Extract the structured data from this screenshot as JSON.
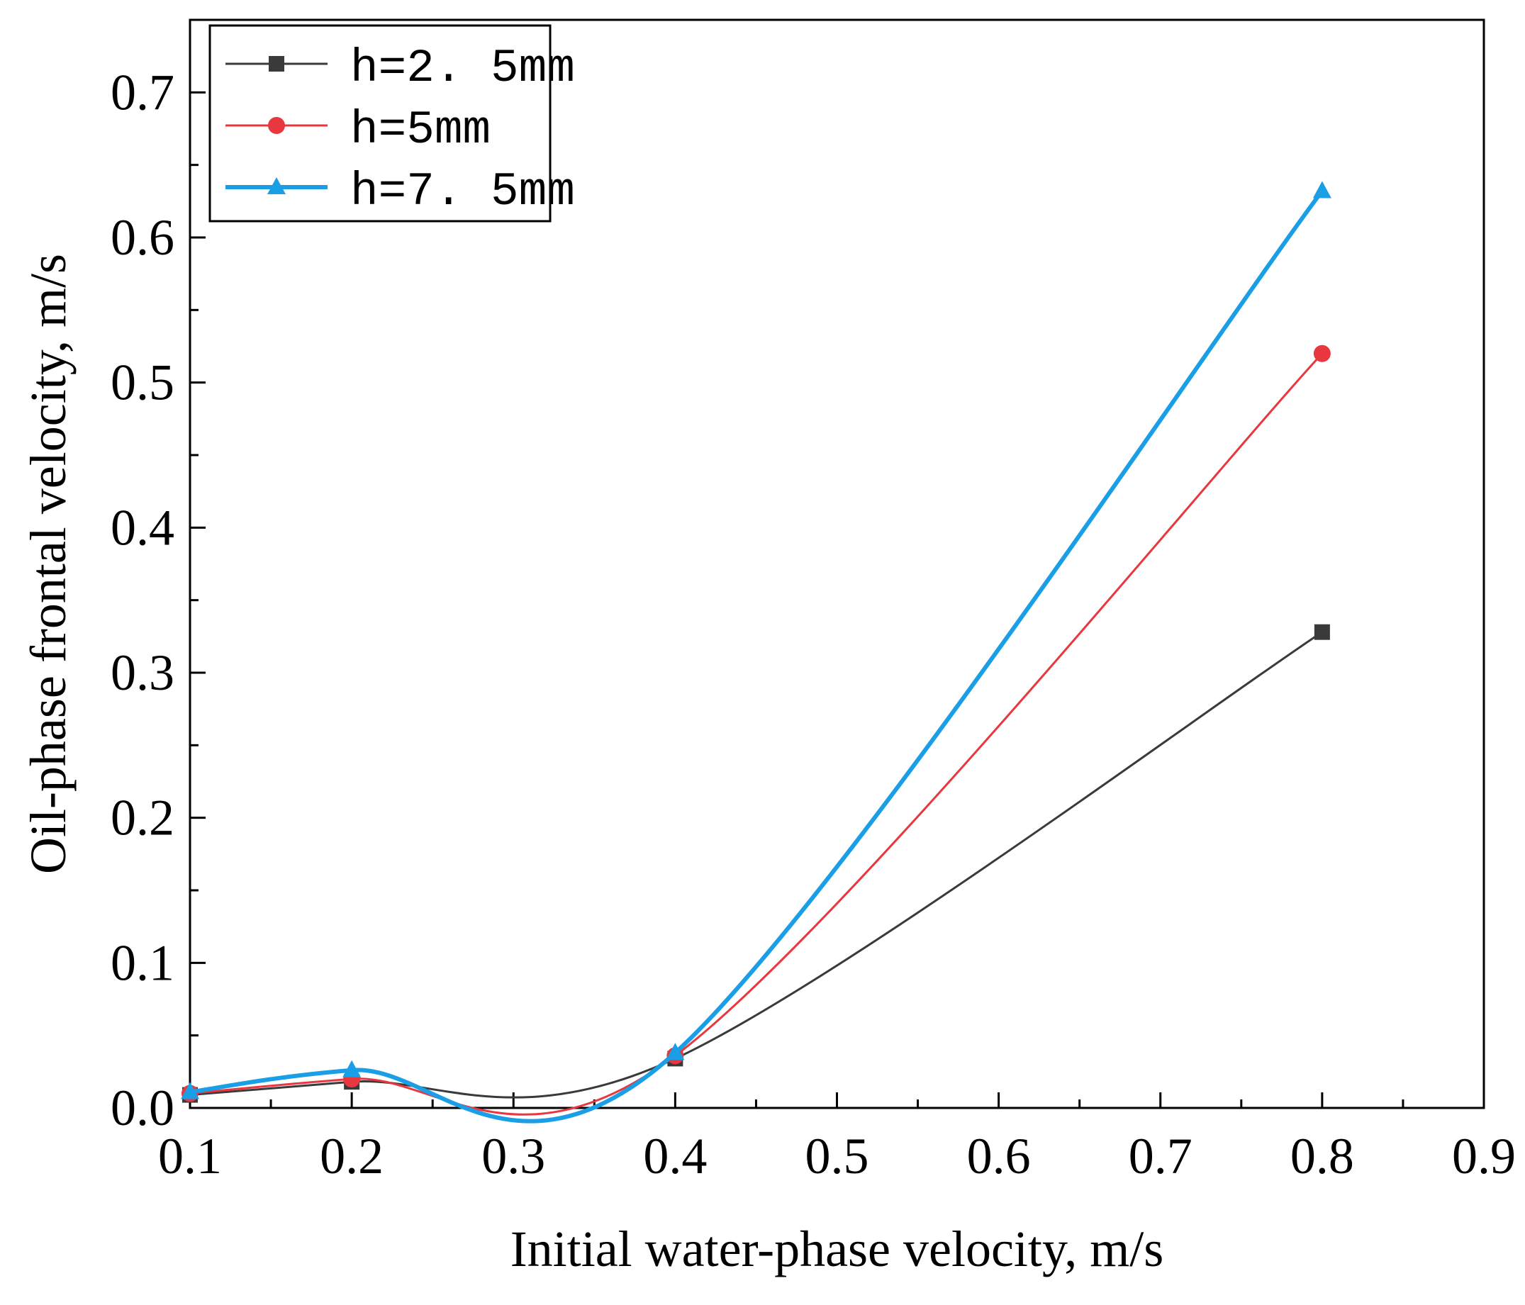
{
  "chart_data": {
    "type": "line",
    "title": "",
    "xlabel": "Initial water-phase velocity, m/s",
    "ylabel": "Oil-phase frontal velocity, m/s",
    "xlim": [
      0.1,
      0.9
    ],
    "ylim": [
      0.0,
      0.75
    ],
    "xticks": [
      0.1,
      0.2,
      0.3,
      0.4,
      0.5,
      0.6,
      0.7,
      0.8,
      0.9
    ],
    "xtick_labels": [
      "0.1",
      "0.2",
      "0.3",
      "0.4",
      "0.5",
      "0.6",
      "0.7",
      "0.8",
      "0.9"
    ],
    "yticks": [
      0.0,
      0.1,
      0.2,
      0.3,
      0.4,
      0.5,
      0.6,
      0.7
    ],
    "ytick_labels": [
      "0.0",
      "0.1",
      "0.2",
      "0.3",
      "0.4",
      "0.5",
      "0.6",
      "0.7"
    ],
    "grid": false,
    "legend_position": "top-left",
    "x": [
      0.1,
      0.2,
      0.4,
      0.8
    ],
    "series": [
      {
        "name": "h=2. 5mm",
        "marker": "square",
        "color": "#3a3a3a",
        "values": [
          0.009,
          0.018,
          0.034,
          0.328
        ]
      },
      {
        "name": "h=5mm",
        "marker": "circle",
        "color": "#e8373e",
        "values": [
          0.01,
          0.02,
          0.036,
          0.52
        ]
      },
      {
        "name": "h=7. 5mm",
        "marker": "triangle",
        "color": "#1a9fe6",
        "values": [
          0.011,
          0.026,
          0.038,
          0.632
        ]
      }
    ]
  }
}
